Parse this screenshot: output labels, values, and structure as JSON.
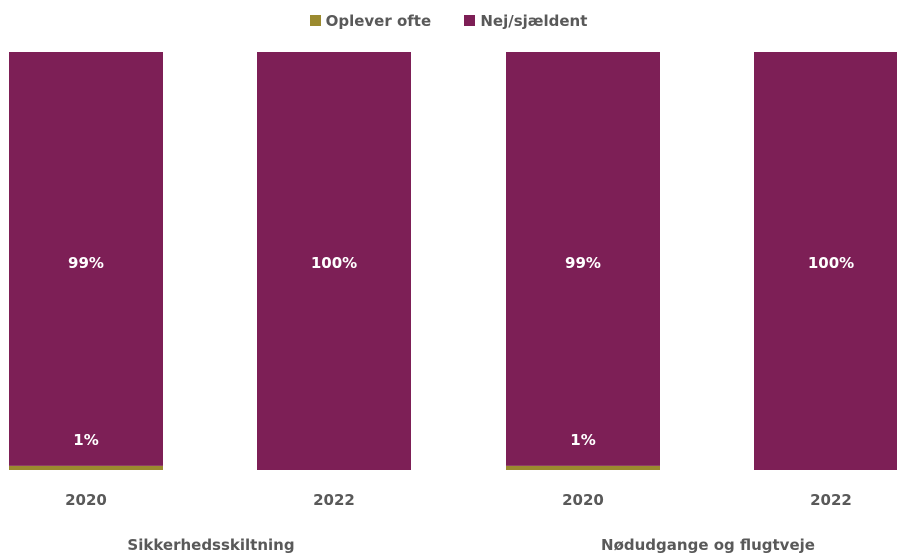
{
  "chart_data": {
    "type": "bar",
    "stacked": true,
    "percent": true,
    "legend": {
      "placement": "top"
    },
    "groups": [
      {
        "name": "Sikkerhedsskiltning",
        "categories": [
          "2020",
          "2022"
        ]
      },
      {
        "name": "Nødudgange og flugtveje",
        "categories": [
          "2020",
          "2022"
        ]
      }
    ],
    "series": [
      {
        "name": "Oplever ofte",
        "color": "#9B8A2F",
        "values": [
          1,
          0,
          1,
          0
        ],
        "labels": [
          "1%",
          "",
          "1%",
          ""
        ]
      },
      {
        "name": "Nej/sjældent",
        "color": "#7D1F56",
        "values": [
          99,
          100,
          99,
          100
        ],
        "labels": [
          "99%",
          "100%",
          "99%",
          "100%"
        ]
      }
    ],
    "ylim": [
      0,
      100
    ],
    "grid": false
  }
}
